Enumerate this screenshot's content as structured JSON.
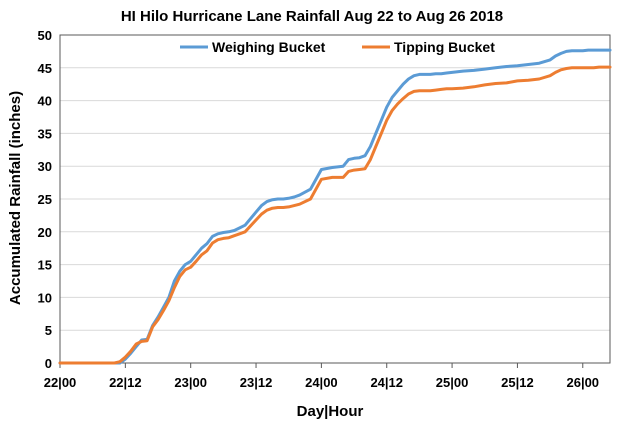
{
  "chart_data": {
    "type": "line",
    "title": "HI Hilo Hurricane Lane Rainfall Aug 22 to Aug 26 2018",
    "xlabel": "Day|Hour",
    "ylabel": "Accumulated Rainfall (inches)",
    "ylim": [
      0,
      50
    ],
    "xlim": [
      0,
      101
    ],
    "yticks": [
      0,
      5,
      10,
      15,
      20,
      25,
      30,
      35,
      40,
      45,
      50
    ],
    "xticks": [
      {
        "hours": 0,
        "label": "22|00"
      },
      {
        "hours": 12,
        "label": "22|12"
      },
      {
        "hours": 24,
        "label": "23|00"
      },
      {
        "hours": 36,
        "label": "23|12"
      },
      {
        "hours": 48,
        "label": "24|00"
      },
      {
        "hours": 60,
        "label": "24|12"
      },
      {
        "hours": 72,
        "label": "25|00"
      },
      {
        "hours": 84,
        "label": "25|12"
      },
      {
        "hours": 96,
        "label": "26|00"
      }
    ],
    "grid": "horizontal",
    "legend_position": "top",
    "series": [
      {
        "name": "Weighing Bucket",
        "color": "#5b9bd5",
        "x": [
          0,
          11,
          12,
          13,
          14,
          15,
          16,
          17,
          18,
          19,
          20,
          21,
          22,
          23,
          24,
          25,
          26,
          27,
          28,
          29,
          30,
          31,
          32,
          33,
          34,
          36,
          37,
          38,
          39,
          40,
          41,
          42,
          43,
          44,
          46,
          48,
          50,
          51,
          52,
          53,
          54,
          55,
          56,
          57,
          58,
          59,
          60,
          61,
          62,
          63,
          64,
          65,
          66,
          67,
          68,
          69,
          70,
          71,
          72,
          74,
          76,
          78,
          80,
          82,
          84,
          86,
          88,
          90,
          91,
          92,
          93,
          94,
          95,
          96,
          97,
          98,
          99,
          100,
          101
        ],
        "y": [
          0,
          0,
          0.6,
          1.5,
          2.5,
          3.5,
          3.6,
          5.7,
          7.0,
          8.5,
          10.0,
          12.5,
          14.0,
          15.0,
          15.5,
          16.5,
          17.5,
          18.2,
          19.3,
          19.7,
          19.9,
          20.0,
          20.2,
          20.6,
          21.0,
          23.0,
          24.0,
          24.6,
          24.9,
          25.0,
          25.0,
          25.1,
          25.3,
          25.6,
          26.5,
          29.5,
          29.8,
          29.9,
          30.0,
          31.0,
          31.2,
          31.3,
          31.6,
          33.0,
          35.0,
          37.0,
          39.0,
          40.5,
          41.5,
          42.5,
          43.3,
          43.8,
          44.0,
          44.0,
          44.0,
          44.1,
          44.1,
          44.2,
          44.3,
          44.5,
          44.6,
          44.8,
          45.0,
          45.2,
          45.3,
          45.5,
          45.7,
          46.2,
          46.8,
          47.2,
          47.5,
          47.6,
          47.6,
          47.6,
          47.7,
          47.7,
          47.7,
          47.7,
          47.7
        ]
      },
      {
        "name": "Tipping Bucket",
        "color": "#ed7d31",
        "x": [
          0,
          10,
          11,
          12,
          13,
          14,
          15,
          16,
          17,
          18,
          19,
          20,
          21,
          22,
          23,
          24,
          25,
          26,
          27,
          28,
          29,
          30,
          31,
          32,
          33,
          34,
          36,
          37,
          38,
          39,
          40,
          41,
          42,
          43,
          44,
          46,
          48,
          50,
          51,
          52,
          53,
          54,
          55,
          56,
          57,
          58,
          59,
          60,
          61,
          62,
          63,
          64,
          65,
          66,
          67,
          68,
          69,
          70,
          71,
          72,
          74,
          76,
          78,
          80,
          82,
          84,
          86,
          88,
          90,
          91,
          92,
          93,
          94,
          95,
          96,
          97,
          98,
          99,
          100,
          101
        ],
        "y": [
          0,
          0,
          0.2,
          0.9,
          1.8,
          2.9,
          3.3,
          3.4,
          5.5,
          6.6,
          8.0,
          9.5,
          11.5,
          13.2,
          14.2,
          14.6,
          15.5,
          16.5,
          17.1,
          18.3,
          18.8,
          19.0,
          19.1,
          19.4,
          19.7,
          20.0,
          21.8,
          22.7,
          23.3,
          23.6,
          23.7,
          23.7,
          23.8,
          24.0,
          24.2,
          25.0,
          28.0,
          28.3,
          28.3,
          28.3,
          29.2,
          29.4,
          29.5,
          29.6,
          31.0,
          33.0,
          35.0,
          37.0,
          38.5,
          39.5,
          40.3,
          41.0,
          41.4,
          41.5,
          41.5,
          41.5,
          41.6,
          41.7,
          41.8,
          41.8,
          41.9,
          42.1,
          42.4,
          42.6,
          42.7,
          43.0,
          43.1,
          43.3,
          43.8,
          44.3,
          44.7,
          44.9,
          45.0,
          45.0,
          45.0,
          45.0,
          45.0,
          45.1,
          45.1,
          45.1
        ]
      }
    ]
  }
}
